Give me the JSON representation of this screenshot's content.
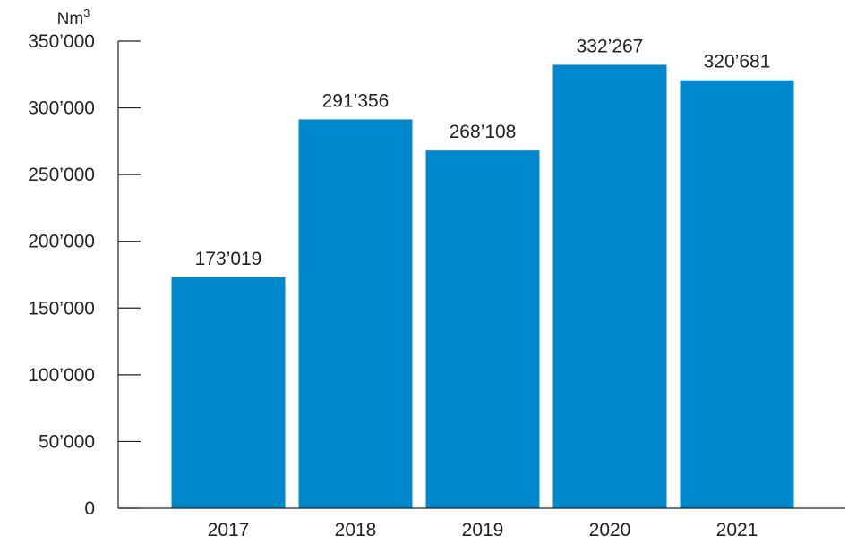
{
  "chart_data": {
    "type": "bar",
    "unit_label": "Nm",
    "unit_superscript": "3",
    "categories": [
      "2017",
      "2018",
      "2019",
      "2020",
      "2021"
    ],
    "values": [
      173019,
      291356,
      268108,
      332267,
      320681
    ],
    "value_labels": [
      "173’019",
      "291’356",
      "268’108",
      "332’267",
      "320’681"
    ],
    "ylim": [
      0,
      350000
    ],
    "yticks": [
      0,
      50000,
      100000,
      150000,
      200000,
      250000,
      300000,
      350000
    ],
    "ytick_labels": [
      "0",
      "50’000",
      "100’000",
      "150’000",
      "200’000",
      "250’000",
      "300’000",
      "350’000"
    ],
    "bar_color": "#0088CC",
    "grid": false,
    "legend": "none"
  }
}
